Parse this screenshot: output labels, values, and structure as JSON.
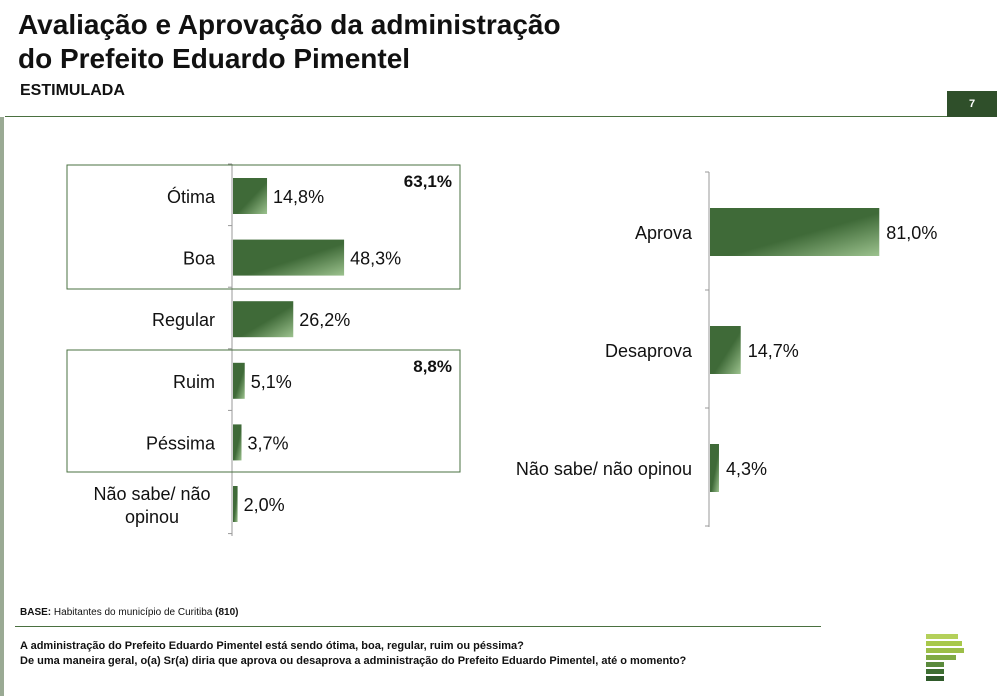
{
  "header": {
    "title_line1": "Avaliação e Aprovação da administração",
    "title_line2": "do Prefeito Eduardo Pimentel",
    "subtitle": "ESTIMULADA",
    "page_number": "7"
  },
  "chart_data": [
    {
      "type": "bar",
      "orientation": "horizontal",
      "categories": [
        "Ótima",
        "Boa",
        "Regular",
        "Ruim",
        "Péssima",
        "Não sabe/ não opinou"
      ],
      "values": [
        14.8,
        48.3,
        26.2,
        5.1,
        3.7,
        2.0
      ],
      "value_labels": [
        "14,8%",
        "48,3%",
        "26,2%",
        "5,1%",
        "3,7%",
        "2,0%"
      ],
      "groups": [
        {
          "label": "63,1%",
          "value": 63.1,
          "categories": [
            "Ótima",
            "Boa"
          ]
        },
        {
          "label": "8,8%",
          "value": 8.8,
          "categories": [
            "Ruim",
            "Péssima"
          ]
        }
      ],
      "colors": {
        "bar_dark": "#3f6a38",
        "bar_light": "#9cc28e",
        "box": "#4a7040"
      }
    },
    {
      "type": "bar",
      "orientation": "horizontal",
      "categories": [
        "Aprova",
        "Desaprova",
        "Não sabe/ não opinou"
      ],
      "values": [
        81.0,
        14.7,
        4.3
      ],
      "value_labels": [
        "81,0%",
        "14,7%",
        "4,3%"
      ],
      "colors": {
        "bar_dark": "#3f6a38",
        "bar_light": "#9cc28e"
      }
    }
  ],
  "footer": {
    "base_label": "BASE:",
    "base_text": "Habitantes do município de Curitiba",
    "base_n": "(810)",
    "question1": "A administração do Prefeito Eduardo Pimentel está sendo ótima, boa, regular, ruim ou péssima?",
    "question2": "De uma maneira geral, o(a) Sr(a) diria que aprova ou desaprova a administração do Prefeito Eduardo Pimentel, até o momento?"
  },
  "colors": {
    "accent": "#4a7040",
    "badge": "#2f4f2a",
    "logo_light": "#a8c84a",
    "logo_dark": "#2f5a2a"
  }
}
